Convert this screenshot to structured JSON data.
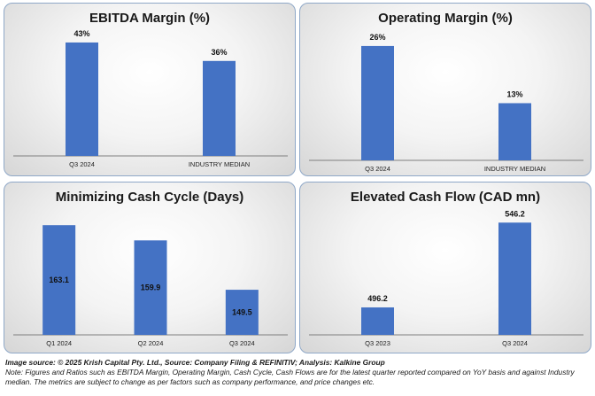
{
  "chart_data": [
    {
      "type": "bar",
      "title": "EBITDA Margin (%)",
      "categories": [
        "Q3 2024",
        "INDUSTRY MEDIAN"
      ],
      "values": [
        43,
        36
      ],
      "value_labels": [
        "43%",
        "36%"
      ],
      "ylim": [
        0,
        45
      ],
      "label_position": "above",
      "grid": false
    },
    {
      "type": "bar",
      "title": "Operating Margin (%)",
      "categories": [
        "Q3 2024",
        "INDUSTRY MEDIAN"
      ],
      "values": [
        26,
        13
      ],
      "value_labels": [
        "26%",
        "13%"
      ],
      "ylim": [
        0,
        28
      ],
      "label_position": "above",
      "grid": false
    },
    {
      "type": "bar",
      "title": "Minimizing Cash Cycle (Days)",
      "categories": [
        "Q1 2024",
        "Q2 2024",
        "Q3 2024"
      ],
      "values": [
        163.1,
        159.9,
        149.5
      ],
      "value_labels": [
        "163.1",
        "159.9",
        "149.5"
      ],
      "ylim": [
        140,
        165
      ],
      "label_position": "inside",
      "grid": false
    },
    {
      "type": "bar",
      "title": "Elevated Cash Flow (CAD mn)",
      "categories": [
        "Q3 2023",
        "Q3 2024"
      ],
      "values": [
        496.2,
        546.2
      ],
      "value_labels": [
        "496.2",
        "546.2"
      ],
      "ylim": [
        480,
        550
      ],
      "label_position": "above",
      "grid": false
    }
  ],
  "footer": {
    "source": "Image source: © 2025 Krish Capital Pty. Ltd., Source: Company Filing & REFINITIV; Analysis: Kalkine Group",
    "note_line1": "Note: Figures and Ratios such as  EBITDA Margin, Operating Margin, Cash Cycle, Cash Flows are for the latest quarter reported compared on YoY basis  and against Industry",
    "note_line2": "median. The metrics are subject to change as per factors such as company performance, and price changes etc."
  }
}
